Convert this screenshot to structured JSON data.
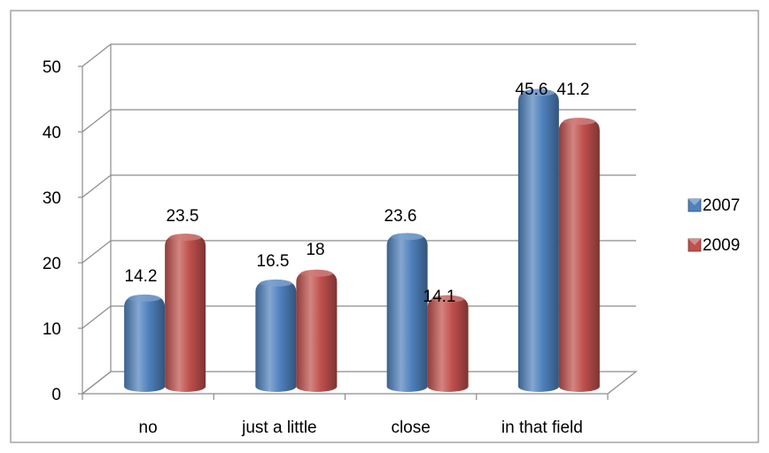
{
  "chart_data": {
    "type": "bar",
    "categories": [
      "no",
      "just a little",
      "close",
      "in that field"
    ],
    "series": [
      {
        "name": "2007",
        "values": [
          14.2,
          16.5,
          23.6,
          45.6
        ],
        "color": "#4f81bd"
      },
      {
        "name": "2009",
        "values": [
          23.5,
          18,
          14.1,
          41.2
        ],
        "color": "#c0504d"
      }
    ],
    "data_labels": [
      [
        "14.2",
        "16.5",
        "23.6",
        "45.6"
      ],
      [
        "23.5",
        "18",
        "14.1",
        "41.2"
      ]
    ],
    "ylim": [
      0,
      50
    ],
    "yticks": [
      0,
      10,
      20,
      30,
      40,
      50
    ],
    "grid": true,
    "style": "3d-cylinder",
    "legend_position": "right"
  }
}
